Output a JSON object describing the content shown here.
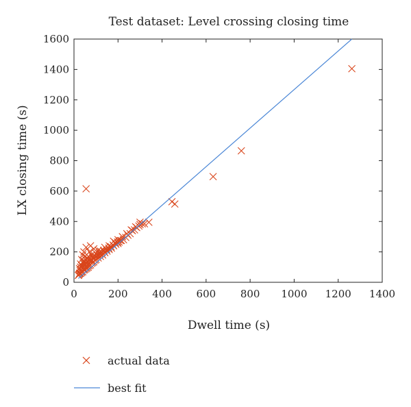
{
  "chart_data": {
    "type": "scatter",
    "title": "Test dataset: Level crossing closing time",
    "xlabel": "Dwell time (s)",
    "ylabel": "LX closing time (s)",
    "xlim": [
      0,
      1400
    ],
    "ylim": [
      0,
      1600
    ],
    "xticks": [
      0,
      200,
      400,
      600,
      800,
      1000,
      1200,
      1400
    ],
    "yticks": [
      0,
      200,
      400,
      600,
      800,
      1000,
      1200,
      1400,
      1600
    ],
    "grid": false,
    "legend_position": "bottom-left, below plot",
    "series": [
      {
        "name": "actual data",
        "marker": "x",
        "color": "#d9461c",
        "points": [
          [
            1262,
            1405
          ],
          [
            760,
            865
          ],
          [
            632,
            695
          ],
          [
            458,
            515
          ],
          [
            445,
            530
          ],
          [
            55,
            615
          ],
          [
            340,
            395
          ],
          [
            310,
            385
          ],
          [
            300,
            395
          ],
          [
            295,
            370
          ],
          [
            285,
            360
          ],
          [
            275,
            345
          ],
          [
            265,
            340
          ],
          [
            255,
            320
          ],
          [
            245,
            310
          ],
          [
            235,
            295
          ],
          [
            225,
            280
          ],
          [
            215,
            275
          ],
          [
            205,
            265
          ],
          [
            200,
            255
          ],
          [
            190,
            250
          ],
          [
            180,
            240
          ],
          [
            170,
            225
          ],
          [
            160,
            215
          ],
          [
            150,
            205
          ],
          [
            140,
            195
          ],
          [
            130,
            180
          ],
          [
            120,
            170
          ],
          [
            110,
            160
          ],
          [
            100,
            150
          ],
          [
            95,
            145
          ],
          [
            90,
            135
          ],
          [
            85,
            130
          ],
          [
            80,
            125
          ],
          [
            75,
            115
          ],
          [
            70,
            110
          ],
          [
            65,
            100
          ],
          [
            60,
            95
          ],
          [
            55,
            90
          ],
          [
            50,
            85
          ],
          [
            45,
            80
          ],
          [
            40,
            70
          ],
          [
            35,
            65
          ],
          [
            30,
            60
          ],
          [
            25,
            55
          ],
          [
            20,
            45
          ],
          [
            30,
            120
          ],
          [
            35,
            150
          ],
          [
            40,
            180
          ],
          [
            45,
            200
          ],
          [
            50,
            170
          ],
          [
            55,
            230
          ],
          [
            60,
            140
          ],
          [
            70,
            200
          ],
          [
            75,
            240
          ],
          [
            80,
            180
          ],
          [
            90,
            220
          ],
          [
            100,
            190
          ],
          [
            110,
            210
          ],
          [
            120,
            205
          ],
          [
            140,
            230
          ],
          [
            160,
            240
          ],
          [
            180,
            270
          ],
          [
            200,
            280
          ],
          [
            220,
            300
          ],
          [
            240,
            320
          ],
          [
            260,
            345
          ],
          [
            280,
            365
          ],
          [
            300,
            380
          ],
          [
            320,
            385
          ],
          [
            25,
            90
          ],
          [
            30,
            100
          ],
          [
            35,
            110
          ],
          [
            40,
            95
          ],
          [
            45,
            130
          ],
          [
            50,
            115
          ],
          [
            55,
            125
          ],
          [
            60,
            160
          ],
          [
            65,
            170
          ],
          [
            85,
            165
          ],
          [
            95,
            175
          ],
          [
            105,
            180
          ],
          [
            115,
            195
          ],
          [
            125,
            200
          ],
          [
            135,
            210
          ],
          [
            28,
            75
          ],
          [
            32,
            85
          ],
          [
            38,
            105
          ],
          [
            42,
            125
          ],
          [
            48,
            140
          ],
          [
            52,
            150
          ],
          [
            58,
            110
          ],
          [
            62,
            130
          ],
          [
            68,
            150
          ],
          [
            72,
            160
          ],
          [
            78,
            145
          ],
          [
            88,
            155
          ],
          [
            98,
            165
          ],
          [
            108,
            175
          ],
          [
            118,
            185
          ],
          [
            128,
            195
          ],
          [
            138,
            200
          ],
          [
            148,
            215
          ],
          [
            158,
            225
          ],
          [
            168,
            235
          ],
          [
            178,
            245
          ],
          [
            188,
            260
          ],
          [
            198,
            265
          ],
          [
            210,
            275
          ],
          [
            22,
            50
          ],
          [
            26,
            60
          ],
          [
            34,
            70
          ],
          [
            44,
            88
          ],
          [
            54,
            100
          ],
          [
            64,
            112
          ]
        ]
      },
      {
        "name": "best fit",
        "marker": "line",
        "color": "#4a86d6",
        "line": [
          [
            20,
            25
          ],
          [
            1262,
            1600
          ]
        ]
      }
    ]
  }
}
